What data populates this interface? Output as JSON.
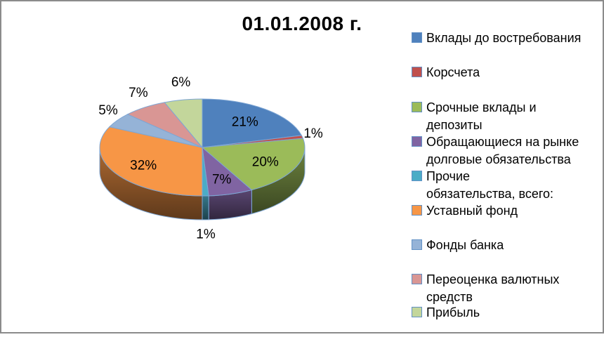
{
  "chart_data": {
    "type": "pie",
    "three_d": true,
    "title": "01.01.2008 г.",
    "legend_position": "right",
    "categories": [
      "Вклады до востребования",
      "Корсчета",
      "Срочные вклады и депозиты",
      "Обращающиеся на рынке долговые обязательства",
      "Прочие обязательства, всего:",
      "Уставный фонд",
      "Фонды банка",
      "Переоценка валютных средств",
      "Прибыль"
    ],
    "values": [
      21,
      1,
      20,
      7,
      1,
      32,
      5,
      7,
      6
    ],
    "data_labels": [
      "21%",
      "1%",
      "20%",
      "7%",
      "1%",
      "32%",
      "5%",
      "7%",
      "6%"
    ],
    "colors": [
      "#4F81BD",
      "#C0504D",
      "#9BBB59",
      "#8064A2",
      "#4BACC6",
      "#F79646",
      "#95B3D7",
      "#D99694",
      "#C3D69B"
    ],
    "slice_border_color": "#7EA6D4",
    "label_inside": [
      true,
      false,
      true,
      true,
      false,
      true,
      false,
      false,
      false
    ],
    "start_angle_deg": 0,
    "frame_color": "#8B8B8B"
  },
  "legend": {
    "items": [
      {
        "label": "Вклады до востребования"
      },
      {
        "label": "Корсчета"
      },
      {
        "label": "Срочные вклады и\nдепозиты"
      },
      {
        "label": "Обращающиеся на рынке\nдолговые обязательства"
      },
      {
        "label": "Прочие\nобязательства, всего:"
      },
      {
        "label": "Уставный фонд"
      },
      {
        "label": "Фонды банка"
      },
      {
        "label": "Переоценка валютных\nсредств"
      },
      {
        "label": "Прибыль"
      }
    ]
  }
}
